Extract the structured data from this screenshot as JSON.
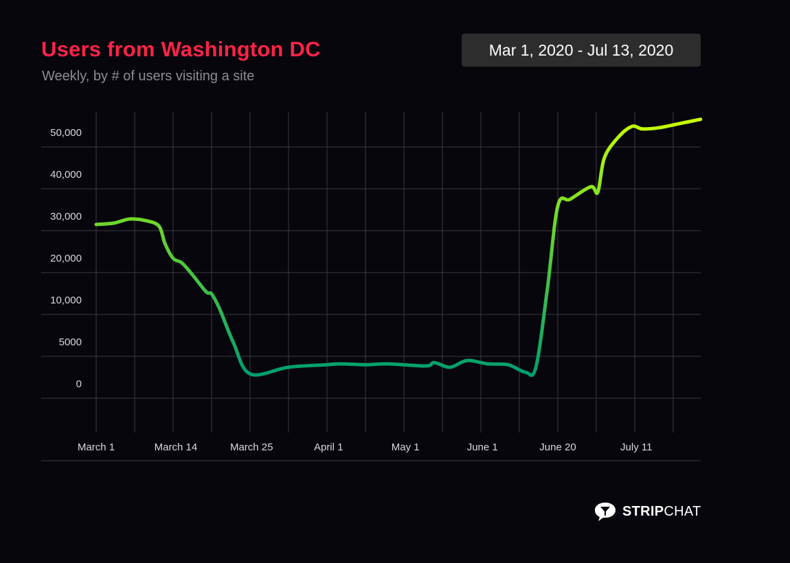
{
  "header": {
    "title": "Users from Washington DC",
    "subtitle": "Weekly, by # of users visiting a site",
    "date_range": "Mar 1, 2020 - Jul 13, 2020"
  },
  "brand": {
    "name_bold": "STRIP",
    "name_regular": "CHAT"
  },
  "colors": {
    "title": "#ff2447",
    "line_top": "#c8ff00",
    "line_mid": "#6ad62d",
    "line_bottom": "#009e6e",
    "grid": "#3a3a3e",
    "background": "#07060d"
  },
  "chart_data": {
    "type": "line",
    "title": "Users from Washington DC",
    "subtitle": "Weekly, by # of users visiting a site",
    "xlabel": "",
    "ylabel": "",
    "y_ticks": [
      {
        "value": 0,
        "label": "0"
      },
      {
        "value": 5000,
        "label": "5000"
      },
      {
        "value": 10000,
        "label": "10,000"
      },
      {
        "value": 20000,
        "label": "20,000"
      },
      {
        "value": 30000,
        "label": "30,000"
      },
      {
        "value": 40000,
        "label": "40,000"
      },
      {
        "value": 50000,
        "label": "50,000"
      }
    ],
    "x_ticks": [
      {
        "pos": 0,
        "label": "March 1"
      },
      {
        "pos": 2.07,
        "label": "March 14"
      },
      {
        "pos": 4.04,
        "label": "March 25"
      },
      {
        "pos": 6.04,
        "label": "April 1"
      },
      {
        "pos": 8.04,
        "label": "May 1"
      },
      {
        "pos": 10.04,
        "label": "June 1"
      },
      {
        "pos": 12,
        "label": "June 20"
      },
      {
        "pos": 14.04,
        "label": "July 11"
      }
    ],
    "x_range": [
      -1.43,
      15.71
    ],
    "grid": true,
    "series": [
      {
        "name": "Users",
        "x": [
          0,
          0.45,
          0.89,
          1.34,
          1.64,
          1.79,
          2,
          2.23,
          2.5,
          2.86,
          3,
          3.21,
          3.57,
          4,
          5,
          6,
          6.36,
          7,
          7.59,
          8.57,
          8.79,
          9.2,
          9.64,
          10.18,
          10.71,
          11.16,
          11.43,
          11.73,
          12,
          12.32,
          12.86,
          13.04,
          13.21,
          13.57,
          13.93,
          14.2,
          14.64,
          15.18,
          15.71
        ],
        "y": [
          31500,
          31800,
          32800,
          32300,
          31000,
          26900,
          23400,
          22300,
          19500,
          15400,
          14900,
          11300,
          6600,
          2900,
          3700,
          4000,
          4100,
          4000,
          4100,
          3850,
          4250,
          3700,
          4500,
          4100,
          4000,
          3100,
          3700,
          16200,
          35900,
          37500,
          40500,
          39200,
          47400,
          52300,
          54900,
          54300,
          54600,
          55600,
          56600
        ]
      }
    ]
  }
}
